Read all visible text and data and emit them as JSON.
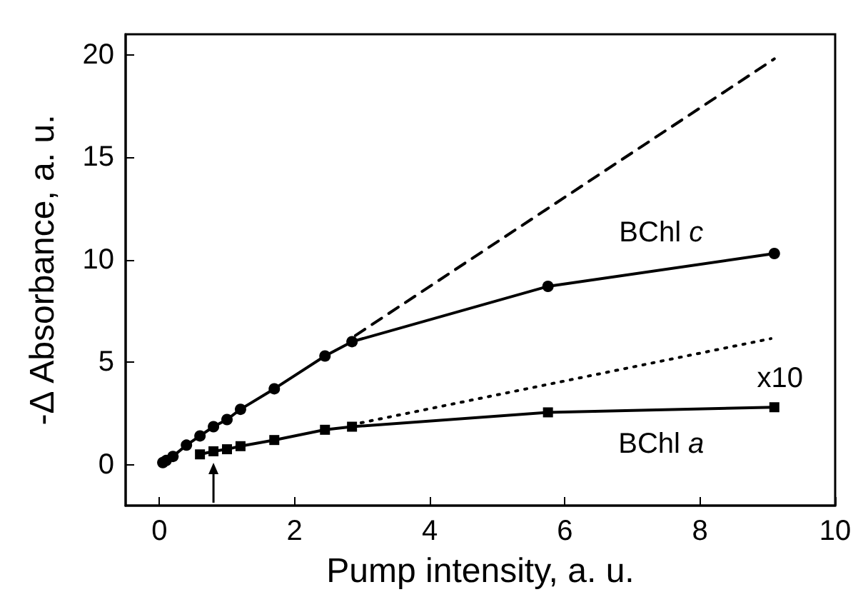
{
  "chart_data": {
    "type": "line",
    "xlabel": "Pump intensity, a. u.",
    "ylabel": "-Δ Absorbance, a. u.",
    "xlim": [
      -0.5,
      10
    ],
    "ylim": [
      -2,
      21
    ],
    "xticks": [
      0,
      2,
      4,
      6,
      8,
      10
    ],
    "yticks": [
      0,
      5,
      10,
      15,
      20
    ],
    "grid": false,
    "series": [
      {
        "name": "BChl c",
        "color": "#000000",
        "marker": "circle",
        "line_style": "solid",
        "x": [
          0.05,
          0.1,
          0.2,
          0.4,
          0.6,
          0.8,
          1.0,
          1.2,
          1.7,
          2.45,
          2.85,
          5.75,
          9.1
        ],
        "values": [
          0.1,
          0.2,
          0.4,
          0.95,
          1.4,
          1.85,
          2.2,
          2.7,
          3.7,
          5.3,
          6.0,
          8.7,
          10.3
        ]
      },
      {
        "name": "BChl a",
        "color": "#000000",
        "marker": "square",
        "line_style": "solid",
        "x": [
          0.6,
          0.8,
          1.0,
          1.2,
          1.7,
          2.45,
          2.85,
          5.75,
          9.1
        ],
        "values": [
          0.5,
          0.65,
          0.75,
          0.9,
          1.2,
          1.7,
          1.85,
          2.55,
          2.8
        ]
      },
      {
        "color": "#000000",
        "marker": "none",
        "line_style": "dashed",
        "x": [
          2.9,
          9.1
        ],
        "values": [
          6.3,
          19.8
        ]
      },
      {
        "color": "#000000",
        "marker": "none",
        "line_style": "dotted",
        "x": [
          2.85,
          9.05
        ],
        "values": [
          1.95,
          6.15
        ]
      }
    ],
    "annotations": [
      "x10"
    ]
  }
}
